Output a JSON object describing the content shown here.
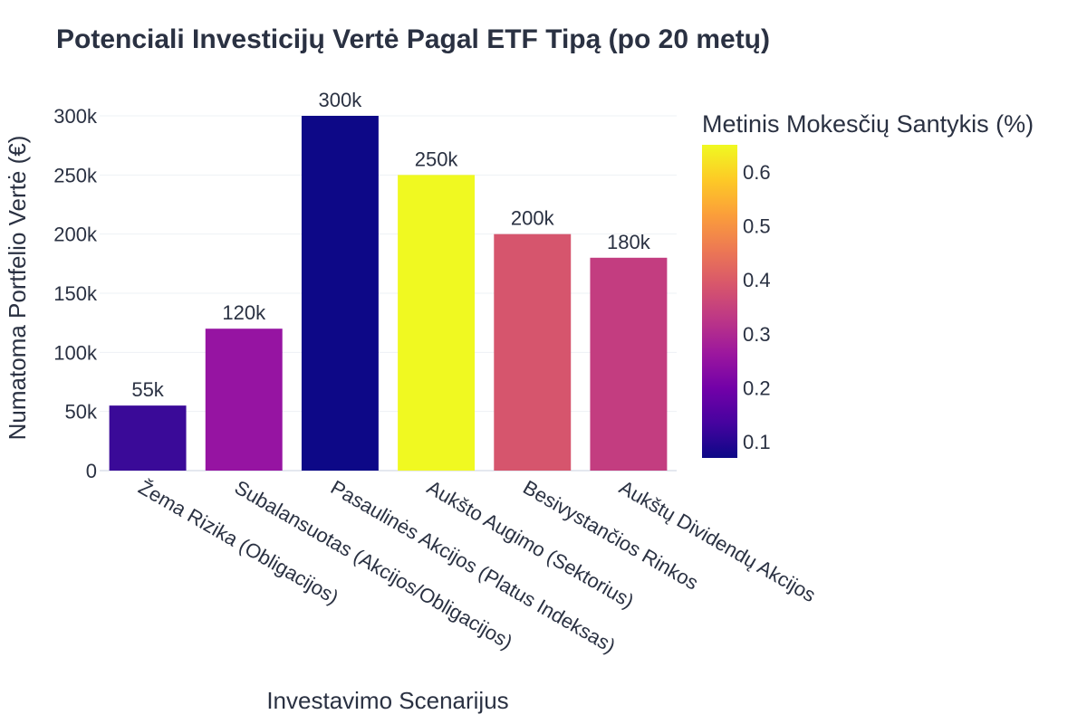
{
  "chart_data": {
    "type": "bar",
    "title": "Potenciali Investicijų Vertė Pagal ETF Tipą (po 20 metų)",
    "xlabel": "Investavimo Scenarijus",
    "ylabel": "Numatoma Portfelio Vertė (€)",
    "categories": [
      "Žema Rizika (Obligacijos)",
      "Subalansuotas (Akcijos/Obligacijos)",
      "Pasaulinės Akcijos (Platus Indeksas)",
      "Aukšto Augimo (Sektorius)",
      "Besivystančios Rinkos",
      "Aukštų Dividendų Akcijos"
    ],
    "values": [
      55000,
      120000,
      300000,
      250000,
      200000,
      180000
    ],
    "value_labels": [
      "55k",
      "120k",
      "300k",
      "250k",
      "200k",
      "180k"
    ],
    "color_values": [
      0.15,
      0.25,
      0.07,
      0.65,
      0.4,
      0.35
    ],
    "bar_colors": [
      "#3a0a98",
      "#9614a2",
      "#0d0887",
      "#f0f921",
      "#d6556d",
      "#c33d80"
    ],
    "ylim": [
      0,
      300000
    ],
    "yticks": [
      0,
      50000,
      100000,
      150000,
      200000,
      250000,
      300000
    ],
    "ytick_labels": [
      "0",
      "50k",
      "100k",
      "150k",
      "200k",
      "250k",
      "300k"
    ],
    "grid": true,
    "colorbar": {
      "title": "Metinis Mokesčių Santykis (%)",
      "range": [
        0.07,
        0.65
      ],
      "ticks": [
        0.1,
        0.2,
        0.3,
        0.4,
        0.5,
        0.6
      ],
      "tick_labels": [
        "0.1",
        "0.2",
        "0.3",
        "0.4",
        "0.5",
        "0.6"
      ],
      "colorscale": [
        "#0d0887",
        "#46039f",
        "#7201a8",
        "#9c179e",
        "#bd3786",
        "#d8576b",
        "#ed7953",
        "#fb9f3a",
        "#fdca26",
        "#f0f921"
      ],
      "placement": "right"
    }
  }
}
